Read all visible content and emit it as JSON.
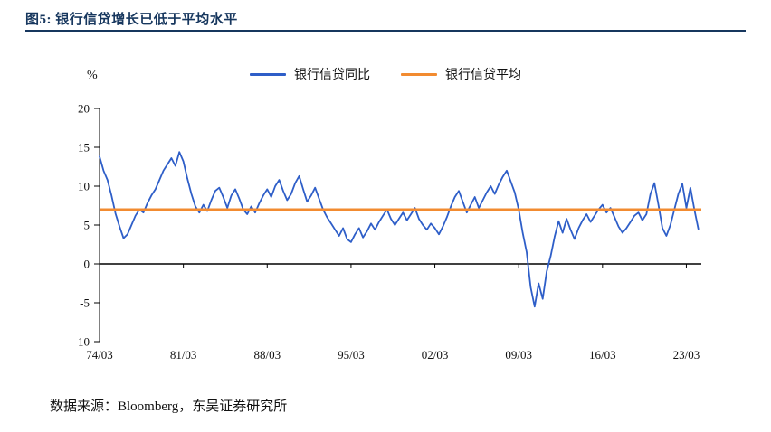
{
  "title": "图5:  银行信贷增长已低于平均水平",
  "source": "数据来源：Bloomberg，东吴证券研究所",
  "colors": {
    "title_navy": "#17375E",
    "series_blue": "#2E5EC8",
    "series_orange": "#F28B30",
    "axis_black": "#000000"
  },
  "chart_data": {
    "type": "line",
    "title": "银行信贷增长已低于平均水平",
    "unit_label": "%",
    "xlabel": "",
    "ylabel": "%",
    "ylim": [
      -10,
      20
    ],
    "yticks": [
      20,
      15,
      10,
      5,
      0,
      -5,
      -10
    ],
    "xlim": [
      1974.25,
      2024.5
    ],
    "xticks": [
      {
        "label": "74/03",
        "t": 1974.25
      },
      {
        "label": "81/03",
        "t": 1981.25
      },
      {
        "label": "88/03",
        "t": 1988.25
      },
      {
        "label": "95/03",
        "t": 1995.25
      },
      {
        "label": "02/03",
        "t": 2002.25
      },
      {
        "label": "09/03",
        "t": 2009.25
      },
      {
        "label": "16/03",
        "t": 2016.25
      },
      {
        "label": "23/03",
        "t": 2023.25
      }
    ],
    "grid": false,
    "legend_position": "top",
    "series": [
      {
        "name": "银行信贷同比",
        "color": "#2E5EC8",
        "x_start": 1974.25,
        "x_step": 0.3333333,
        "values": [
          13.8,
          12.0,
          10.8,
          8.8,
          6.5,
          4.8,
          3.3,
          3.8,
          5.0,
          6.2,
          7.0,
          6.6,
          7.8,
          8.8,
          9.6,
          10.8,
          12.0,
          12.8,
          13.6,
          12.6,
          14.4,
          13.2,
          11.0,
          9.0,
          7.4,
          6.6,
          7.6,
          6.8,
          8.2,
          9.4,
          9.8,
          8.6,
          7.2,
          8.8,
          9.6,
          8.4,
          7.0,
          6.4,
          7.4,
          6.6,
          7.8,
          8.8,
          9.6,
          8.6,
          10.0,
          10.8,
          9.4,
          8.2,
          9.0,
          10.4,
          11.3,
          9.6,
          8.0,
          8.8,
          9.8,
          8.4,
          7.0,
          6.0,
          5.2,
          4.4,
          3.6,
          4.6,
          3.2,
          2.8,
          3.8,
          4.6,
          3.4,
          4.2,
          5.2,
          4.4,
          5.4,
          6.2,
          7.0,
          5.8,
          5.0,
          5.8,
          6.6,
          5.6,
          6.4,
          7.2,
          5.8,
          5.0,
          4.4,
          5.2,
          4.6,
          3.8,
          4.8,
          6.0,
          7.4,
          8.6,
          9.4,
          8.0,
          6.6,
          7.6,
          8.6,
          7.2,
          8.2,
          9.2,
          10.0,
          9.0,
          10.2,
          11.2,
          12.0,
          10.6,
          9.2,
          7.0,
          4.0,
          1.5,
          -3.0,
          -5.5,
          -2.5,
          -4.5,
          -1.0,
          1.0,
          3.5,
          5.5,
          4.0,
          5.8,
          4.4,
          3.2,
          4.6,
          5.6,
          6.4,
          5.4,
          6.2,
          7.0,
          7.6,
          6.6,
          7.2,
          6.0,
          4.8,
          4.0,
          4.6,
          5.4,
          6.2,
          6.6,
          5.6,
          6.4,
          9.0,
          10.4,
          7.6,
          4.6,
          3.6,
          5.0,
          7.0,
          9.0,
          10.3,
          7.2,
          9.8,
          7.0,
          4.5
        ]
      },
      {
        "name": "银行信贷平均",
        "color": "#F28B30",
        "constant": 7.0
      }
    ]
  }
}
